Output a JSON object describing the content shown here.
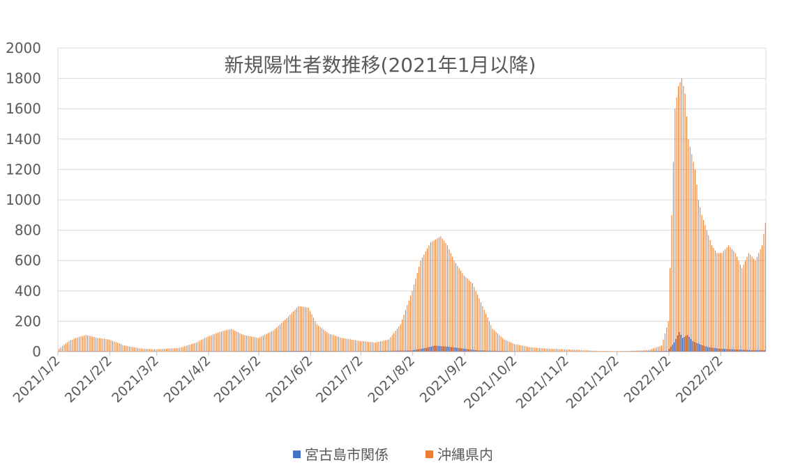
{
  "chart_data": {
    "type": "bar",
    "title": "新規陽性者数推移(2021年1月以降)",
    "xlabel": "",
    "ylabel": "",
    "ylim": [
      0,
      2000
    ],
    "yticks": [
      0,
      200,
      400,
      600,
      800,
      1000,
      1200,
      1400,
      1600,
      1800,
      2000
    ],
    "grid": true,
    "legend_position": "bottom",
    "x_range": [
      "2021/1/2",
      "2022/2/28"
    ],
    "x_tick_labels": [
      "2021/1/2",
      "2021/2/2",
      "2021/3/2",
      "2021/4/2",
      "2021/5/2",
      "2021/6/2",
      "2021/7/2",
      "2021/8/2",
      "2021/9/2",
      "2021/10/2",
      "2021/11/2",
      "2021/12/2",
      "2022/1/2",
      "2022/2/2"
    ],
    "colors": {
      "宮古島市関係": "#4472c4",
      "沖縄県内": "#ed7d31"
    },
    "series": [
      {
        "name": "宮古島市関係",
        "x": [
          "2021/1/2",
          "2021/1/20",
          "2021/2/5",
          "2021/3/1",
          "2021/4/1",
          "2021/5/1",
          "2021/5/25",
          "2021/6/3",
          "2021/7/1",
          "2021/8/1",
          "2021/8/10",
          "2021/8/15",
          "2021/8/20",
          "2021/8/25",
          "2021/9/1",
          "2021/9/10",
          "2021/10/1",
          "2021/11/1",
          "2021/12/1",
          "2022/1/1",
          "2022/1/5",
          "2022/1/8",
          "2022/1/10",
          "2022/1/13",
          "2022/1/16",
          "2022/1/20",
          "2022/1/25",
          "2022/2/1",
          "2022/2/10",
          "2022/2/20",
          "2022/2/28"
        ],
        "values": [
          1,
          2,
          1,
          0,
          2,
          3,
          5,
          4,
          2,
          8,
          25,
          40,
          35,
          30,
          20,
          8,
          2,
          0,
          0,
          5,
          60,
          130,
          90,
          110,
          70,
          50,
          30,
          20,
          15,
          10,
          10
        ]
      },
      {
        "name": "沖縄県内",
        "x": [
          "2021/1/2",
          "2021/1/8",
          "2021/1/12",
          "2021/1/18",
          "2021/1/25",
          "2021/2/1",
          "2021/2/10",
          "2021/2/20",
          "2021/3/1",
          "2021/3/15",
          "2021/3/25",
          "2021/4/1",
          "2021/4/8",
          "2021/4/15",
          "2021/4/22",
          "2021/5/1",
          "2021/5/10",
          "2021/5/18",
          "2021/5/25",
          "2021/5/31",
          "2021/6/5",
          "2021/6/12",
          "2021/6/20",
          "2021/7/1",
          "2021/7/10",
          "2021/7/18",
          "2021/7/25",
          "2021/8/1",
          "2021/8/6",
          "2021/8/12",
          "2021/8/18",
          "2021/8/22",
          "2021/8/26",
          "2021/9/1",
          "2021/9/6",
          "2021/9/12",
          "2021/9/18",
          "2021/9/25",
          "2021/10/1",
          "2021/10/10",
          "2021/10/20",
          "2021/11/1",
          "2021/11/10",
          "2021/11/20",
          "2021/12/1",
          "2021/12/10",
          "2021/12/20",
          "2021/12/28",
          "2022/1/1",
          "2022/1/3",
          "2022/1/5",
          "2022/1/7",
          "2022/1/9",
          "2022/1/11",
          "2022/1/13",
          "2022/1/15",
          "2022/1/17",
          "2022/1/19",
          "2022/1/21",
          "2022/1/24",
          "2022/1/27",
          "2022/1/30",
          "2022/2/2",
          "2022/2/6",
          "2022/2/10",
          "2022/2/14",
          "2022/2/18",
          "2022/2/22",
          "2022/2/26",
          "2022/2/28"
        ],
        "values": [
          20,
          70,
          90,
          110,
          90,
          80,
          40,
          20,
          15,
          25,
          60,
          100,
          130,
          150,
          110,
          90,
          140,
          220,
          300,
          290,
          180,
          120,
          90,
          70,
          60,
          80,
          180,
          400,
          600,
          720,
          760,
          700,
          600,
          500,
          450,
          300,
          150,
          80,
          50,
          30,
          20,
          15,
          10,
          5,
          3,
          5,
          10,
          40,
          200,
          900,
          1600,
          1750,
          1800,
          1700,
          1400,
          1300,
          1200,
          1000,
          900,
          800,
          700,
          650,
          650,
          700,
          650,
          550,
          650,
          600,
          700,
          850
        ]
      }
    ]
  }
}
